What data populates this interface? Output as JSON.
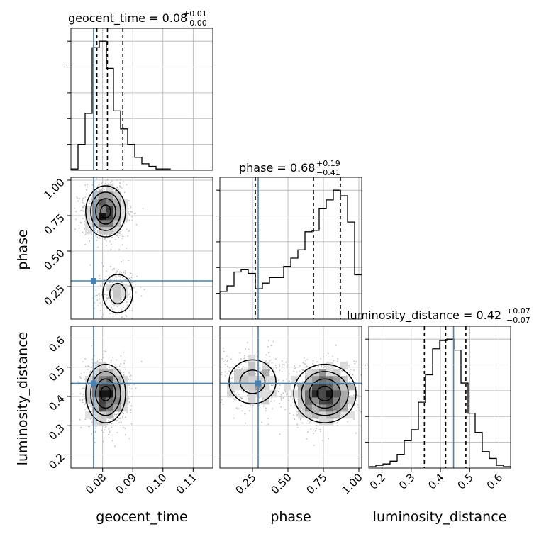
{
  "chart_data": {
    "type": "corner",
    "parameters": [
      "geocent_time",
      "phase",
      "luminosity_distance"
    ],
    "truths": {
      "geocent_time": 0.077,
      "phase": 0.29,
      "luminosity_distance": 0.445
    },
    "colors": {
      "truth": "#4682b4",
      "hist": "#000000",
      "grid": "#b0b0b0"
    },
    "grid": true,
    "ranges": {
      "geocent_time": [
        0.0695,
        0.1165
      ],
      "phase": [
        0.02,
        1.02
      ],
      "luminosity_distance": [
        0.155,
        0.64
      ]
    },
    "ticks": {
      "geocent_time": [
        0.08,
        0.09,
        0.1,
        0.11
      ],
      "phase": [
        0.25,
        0.5,
        0.75,
        1.0
      ],
      "luminosity_distance": [
        0.2,
        0.3,
        0.4,
        0.5,
        0.6
      ]
    },
    "tick_labels": {
      "geocent_time": [
        "0.08",
        "0.09",
        "0.10",
        "0.11"
      ],
      "phase": [
        "0.25",
        "0.50",
        "0.75",
        "1.00"
      ],
      "luminosity_distance": [
        "0.2",
        "0.3",
        "0.4",
        "0.5",
        "0.6"
      ]
    },
    "axis_labels": {
      "x": [
        "geocent_time",
        "phase",
        "luminosity_distance"
      ],
      "y_phase": "phase",
      "y_luminosity_distance": "luminosity_distance"
    },
    "titles": [
      {
        "name": "geocent_time = 0.08",
        "sup": "+0.01",
        "sub": "−0.00"
      },
      {
        "name": "phase = 0.68",
        "sup": "+0.19",
        "sub": "−0.41"
      },
      {
        "name": "luminosity_distance = 0.42",
        "sup": "+0.07",
        "sub": "−0.07"
      }
    ],
    "quantiles": {
      "geocent_time": [
        0.0781,
        0.0816,
        0.0867
      ],
      "phase": [
        0.27,
        0.68,
        0.87
      ],
      "luminosity_distance": [
        0.345,
        0.418,
        0.487
      ]
    },
    "hist_geocent_time": {
      "edges_start": 0.0695,
      "bin_width": 0.00235,
      "values": [
        1,
        20,
        44,
        95,
        100,
        79,
        46,
        32,
        20,
        10,
        5,
        3,
        1,
        1,
        0,
        0,
        0,
        0,
        0,
        0
      ]
    },
    "hist_phase": {
      "edges_start": 0.02,
      "bin_width": 0.05,
      "values": [
        20,
        24,
        34,
        36,
        33,
        22,
        26,
        30,
        30,
        38,
        44,
        50,
        63,
        64,
        80,
        86,
        93,
        89,
        70,
        32
      ]
    },
    "hist_luminosity_distance": {
      "edges_start": 0.155,
      "bin_width": 0.02425,
      "values": [
        1,
        2,
        3,
        5,
        10,
        20,
        28,
        48,
        68,
        87,
        93,
        94,
        86,
        62,
        40,
        26,
        12,
        7,
        2,
        1
      ]
    },
    "contour_samples": {
      "phase_vs_geocent_time": {
        "modes": [
          {
            "x": 0.081,
            "y": 0.78,
            "w": 0.8
          },
          {
            "x": 0.085,
            "y": 0.2,
            "w": 0.2
          }
        ]
      },
      "luminosity_distance_vs_geocent_time": {
        "modes": [
          {
            "x": 0.081,
            "y": 0.41,
            "w": 1.0
          }
        ]
      },
      "luminosity_distance_vs_phase": {
        "modes": [
          {
            "x": 0.76,
            "y": 0.41,
            "w": 0.75
          },
          {
            "x": 0.25,
            "y": 0.45,
            "w": 0.25
          }
        ]
      }
    }
  }
}
